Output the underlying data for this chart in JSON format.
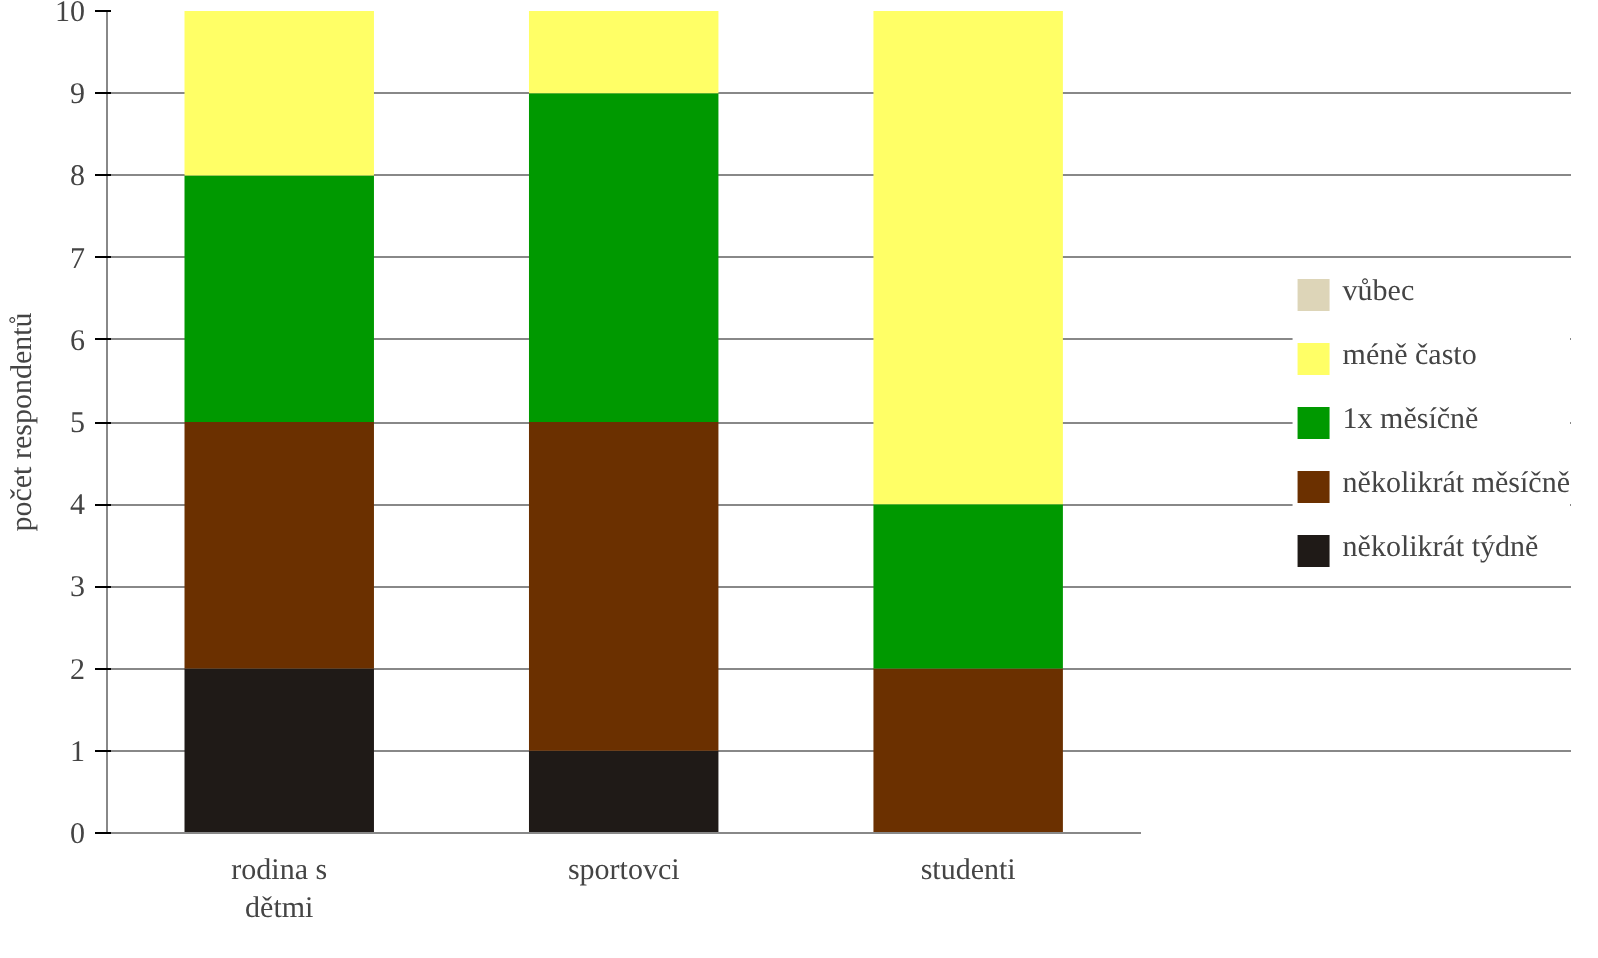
{
  "chart_data": {
    "type": "bar",
    "stacked": true,
    "ylabel": "počet respondentů",
    "categories": [
      "rodina s dětmi",
      "sportovci",
      "studenti"
    ],
    "series": [
      {
        "name": "několikrát týdně",
        "color": "#1f1a17",
        "values": [
          2,
          1,
          0
        ]
      },
      {
        "name": "několikrát měsíčně",
        "color": "#6b3000",
        "values": [
          3,
          4,
          2
        ]
      },
      {
        "name": "1x měsíčně",
        "color": "#009900",
        "values": [
          3,
          4,
          2
        ]
      },
      {
        "name": "méně často",
        "color": "#ffff66",
        "values": [
          2,
          1,
          6
        ]
      },
      {
        "name": "vůbec",
        "color": "#ddd5b8",
        "values": [
          0,
          0,
          0
        ]
      }
    ],
    "ylim": [
      0,
      10
    ],
    "yticks": [
      0,
      1,
      2,
      3,
      4,
      5,
      6,
      7,
      8,
      9,
      10
    ],
    "grid": "y",
    "legend": "right"
  }
}
